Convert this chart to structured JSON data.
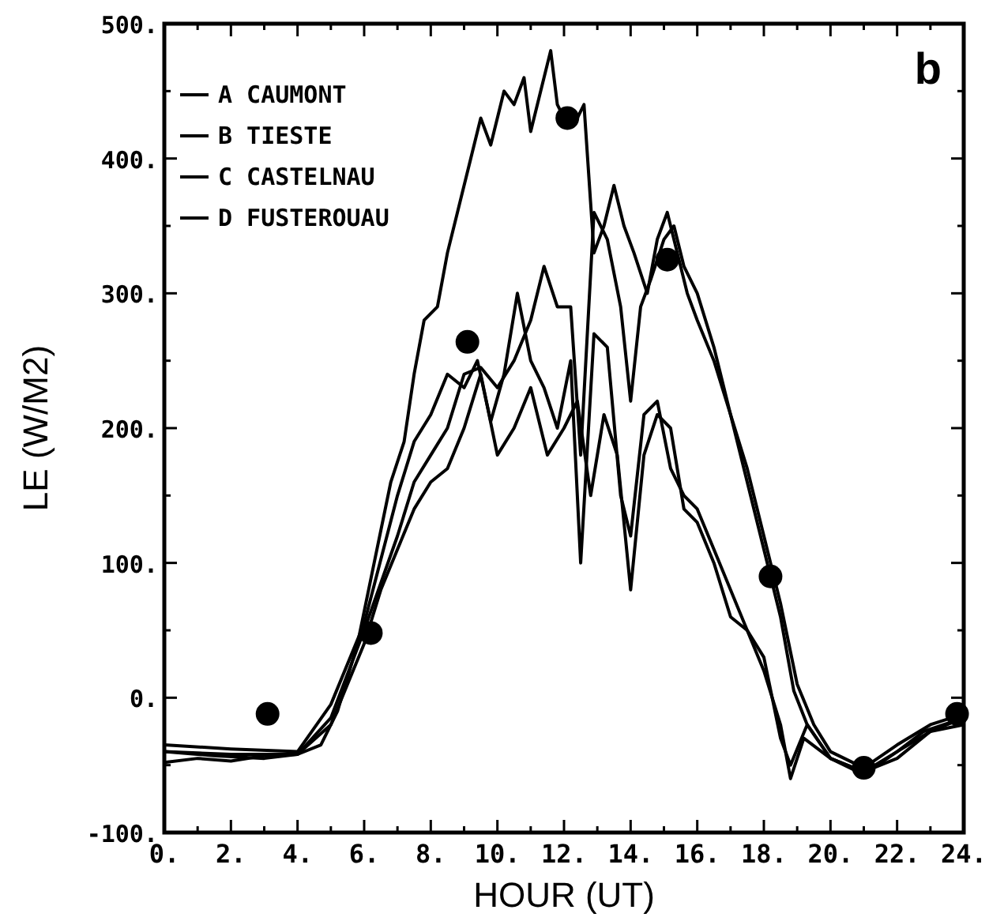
{
  "chart_data": {
    "type": "line",
    "xlabel": "HOUR (UT)",
    "ylabel": "LE (W/M2)",
    "annotations": [
      "b"
    ],
    "xlim": [
      0,
      24
    ],
    "ylim": [
      -100,
      500
    ],
    "xticks": [
      {
        "value": 0,
        "label": "0."
      },
      {
        "value": 1,
        "label": null
      },
      {
        "value": 2,
        "label": "2."
      },
      {
        "value": 3,
        "label": null
      },
      {
        "value": 4,
        "label": "4."
      },
      {
        "value": 5,
        "label": null
      },
      {
        "value": 6,
        "label": "6."
      },
      {
        "value": 7,
        "label": null
      },
      {
        "value": 8,
        "label": "8."
      },
      {
        "value": 9,
        "label": null
      },
      {
        "value": 10,
        "label": "10."
      },
      {
        "value": 11,
        "label": null
      },
      {
        "value": 12,
        "label": "12."
      },
      {
        "value": 13,
        "label": null
      },
      {
        "value": 14,
        "label": "14."
      },
      {
        "value": 15,
        "label": null
      },
      {
        "value": 16,
        "label": "16."
      },
      {
        "value": 17,
        "label": null
      },
      {
        "value": 18,
        "label": "18."
      },
      {
        "value": 19,
        "label": null
      },
      {
        "value": 20,
        "label": "20."
      },
      {
        "value": 21,
        "label": null
      },
      {
        "value": 22,
        "label": "22."
      },
      {
        "value": 23,
        "label": null
      },
      {
        "value": 24,
        "label": "24."
      }
    ],
    "yticks": [
      {
        "value": -100,
        "label": "-100."
      },
      {
        "value": -50,
        "label": null
      },
      {
        "value": 0,
        "label": "0."
      },
      {
        "value": 50,
        "label": null
      },
      {
        "value": 100,
        "label": "100."
      },
      {
        "value": 150,
        "label": null
      },
      {
        "value": 200,
        "label": "200."
      },
      {
        "value": 250,
        "label": null
      },
      {
        "value": 300,
        "label": "300."
      },
      {
        "value": 350,
        "label": null
      },
      {
        "value": 400,
        "label": "400."
      },
      {
        "value": 450,
        "label": null
      },
      {
        "value": 500,
        "label": "500."
      }
    ],
    "grid": false,
    "legend": "top left",
    "marker": "none",
    "line_style": "solid",
    "series": [
      {
        "name": "A CAUMONT",
        "color": "#000000",
        "x": [
          0,
          1,
          2,
          3,
          4,
          4.7,
          5.2,
          5.8,
          6.3,
          6.8,
          7.2,
          7.5,
          7.8,
          8.2,
          8.5,
          8.8,
          9.2,
          9.5,
          9.8,
          10.2,
          10.5,
          10.8,
          11,
          11.3,
          11.6,
          11.8,
          12,
          12.3,
          12.6,
          12.9,
          13.2,
          13.5,
          13.8,
          14.1,
          14.5,
          14.8,
          15.1,
          15.4,
          15.7,
          16,
          16.5,
          17,
          17.5,
          18,
          18.5,
          18.9,
          19.3,
          20,
          21,
          22,
          22.8,
          24
        ],
        "values": [
          -48,
          -45,
          -47,
          -43,
          -42,
          -35,
          -10,
          40,
          100,
          160,
          190,
          240,
          280,
          290,
          330,
          360,
          400,
          430,
          410,
          450,
          440,
          460,
          420,
          450,
          480,
          440,
          430,
          425,
          440,
          330,
          350,
          380,
          350,
          330,
          300,
          340,
          360,
          330,
          300,
          280,
          250,
          210,
          160,
          110,
          60,
          5,
          -20,
          -45,
          -55,
          -40,
          -25,
          -15
        ]
      },
      {
        "name": "B TIESTE",
        "color": "#000000",
        "x": [
          0,
          2,
          4,
          5,
          6,
          7,
          7.5,
          8,
          8.5,
          9,
          9.5,
          10,
          10.5,
          11,
          11.4,
          11.8,
          12.2,
          12.5,
          12.9,
          13.3,
          13.7,
          14,
          14.3,
          14.6,
          15,
          15.3,
          15.6,
          16,
          16.5,
          17,
          17.5,
          18,
          18.5,
          19,
          19.5,
          20,
          21,
          22,
          23,
          24
        ],
        "values": [
          -40,
          -42,
          -42,
          -15,
          50,
          120,
          160,
          180,
          200,
          240,
          245,
          230,
          250,
          280,
          320,
          290,
          290,
          180,
          360,
          340,
          290,
          220,
          290,
          310,
          340,
          350,
          320,
          300,
          260,
          210,
          170,
          120,
          70,
          10,
          -20,
          -40,
          -52,
          -35,
          -20,
          -12
        ]
      },
      {
        "name": "C CASTELNAU",
        "color": "#000000",
        "x": [
          0,
          2,
          4,
          5,
          6,
          7,
          7.5,
          8,
          8.5,
          9,
          9.4,
          9.8,
          10.2,
          10.6,
          11,
          11.4,
          11.8,
          12.2,
          12.5,
          12.9,
          13.3,
          13.7,
          14,
          14.4,
          14.8,
          15.2,
          15.6,
          16,
          16.5,
          17,
          17.5,
          18,
          18.5,
          18.8,
          19.2,
          20,
          21,
          22,
          23,
          24
        ],
        "values": [
          -35,
          -38,
          -40,
          -5,
          55,
          150,
          190,
          210,
          240,
          230,
          250,
          205,
          240,
          300,
          250,
          230,
          200,
          250,
          100,
          270,
          260,
          150,
          120,
          210,
          220,
          170,
          150,
          140,
          110,
          80,
          50,
          20,
          -20,
          -60,
          -30,
          -45,
          -55,
          -45,
          -25,
          -15
        ]
      },
      {
        "name": "D FUSTEROUAU",
        "color": "#000000",
        "x": [
          0,
          1.5,
          3,
          4,
          5,
          6,
          6.5,
          7,
          7.5,
          8,
          8.5,
          9,
          9.5,
          10,
          10.5,
          11,
          11.5,
          12,
          12.4,
          12.8,
          13.2,
          13.6,
          14,
          14.4,
          14.8,
          15.2,
          15.6,
          16,
          16.5,
          17,
          17.5,
          18,
          18.5,
          18.8,
          19.3,
          20,
          21,
          22,
          23,
          24
        ],
        "values": [
          -40,
          -43,
          -45,
          -42,
          -20,
          40,
          80,
          110,
          140,
          160,
          170,
          200,
          240,
          180,
          200,
          230,
          180,
          200,
          220,
          150,
          210,
          180,
          80,
          180,
          210,
          200,
          140,
          130,
          100,
          60,
          50,
          30,
          -30,
          -50,
          -20,
          -45,
          -57,
          -40,
          -25,
          -20
        ]
      },
      {
        "type": "scatter",
        "color": "#000000",
        "marker": "circle",
        "x": [
          3.1,
          6.2,
          9.1,
          12.1,
          15.1,
          18.2,
          21,
          23.8
        ],
        "values": [
          -12,
          48,
          264,
          430,
          325,
          90,
          -52,
          -12
        ]
      }
    ]
  }
}
